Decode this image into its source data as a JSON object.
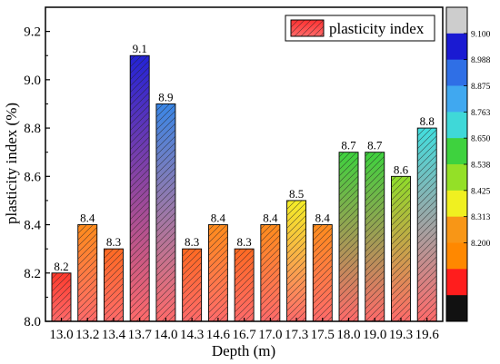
{
  "chart_data": {
    "type": "bar",
    "title": "",
    "xlabel": "Depth (m)",
    "ylabel": "plasticity index (%)",
    "categories": [
      "13.0",
      "13.2",
      "13.4",
      "13.7",
      "14.0",
      "14.3",
      "14.6",
      "16.7",
      "17.0",
      "17.3",
      "17.5",
      "18.0",
      "19.0",
      "19.3",
      "19.6"
    ],
    "values": [
      8.2,
      8.4,
      8.3,
      9.1,
      8.9,
      8.3,
      8.4,
      8.3,
      8.4,
      8.5,
      8.4,
      8.7,
      8.7,
      8.6,
      8.8
    ],
    "value_labels": [
      "8.2",
      "8.4",
      "8.3",
      "9.1",
      "8.9",
      "8.3",
      "8.4",
      "8.3",
      "8.4",
      "8.5",
      "8.4",
      "8.7",
      "8.7",
      "8.6",
      "8.8"
    ],
    "ylim": [
      8.0,
      9.3
    ],
    "yticks": [
      "8.0",
      "8.2",
      "8.4",
      "8.6",
      "8.8",
      "9.0",
      "9.2"
    ],
    "grid": false,
    "legend": {
      "position": "top-right",
      "label": "plasticity index"
    },
    "colorbar": {
      "labels": [
        "9.100",
        "8.988",
        "8.875",
        "8.763",
        "8.650",
        "8.538",
        "8.425",
        "8.313",
        "8.200"
      ],
      "colors": [
        "#cdcdcd",
        "#1a1ad2",
        "#2f6fe6",
        "#40a8f0",
        "#3fd8d8",
        "#3ed23e",
        "#94e027",
        "#f0f020",
        "#f89616",
        "#ff8800",
        "#ff1d1d",
        "#111111"
      ]
    },
    "bar_colors": [
      "#ff3a2c",
      "#ff8c1c",
      "#ff6a22",
      "#2323d6",
      "#3a86e6",
      "#ff6a22",
      "#ff8c1c",
      "#ff6a22",
      "#ff8c1c",
      "#f4ee27",
      "#ff8c1c",
      "#3ed23e",
      "#3ed23e",
      "#8edc2a",
      "#41dede"
    ],
    "bar_fade_color": "#ff6a6a"
  }
}
